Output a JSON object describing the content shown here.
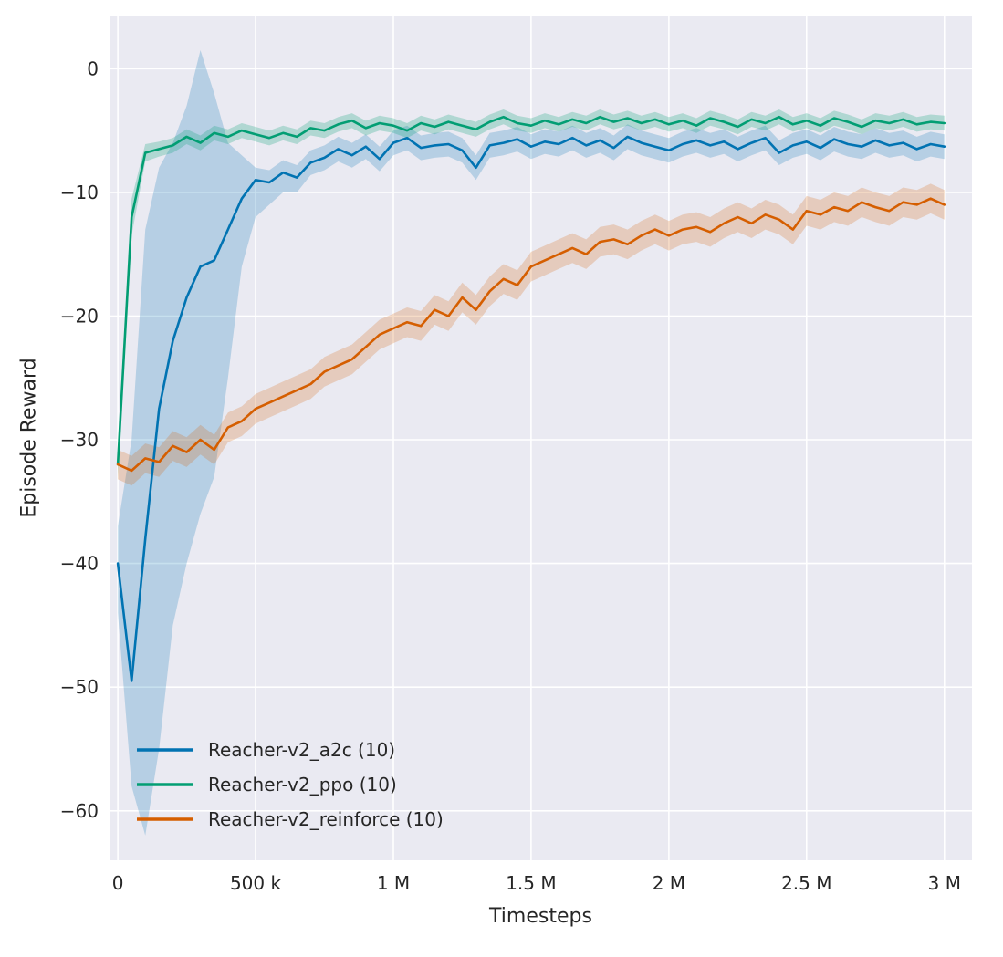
{
  "figure": {
    "background": "#ffffff",
    "plot_background": "#eaeaf2",
    "grid_color": "#ffffff",
    "text_color": "#262626"
  },
  "chart_data": {
    "type": "line",
    "title": "",
    "xlabel": "Timesteps",
    "ylabel": "Episode Reward",
    "x_unit": "timesteps, x values stored in thousands",
    "xlim": [
      -30,
      3100
    ],
    "ylim": [
      -64,
      4.3
    ],
    "grid": true,
    "legend_position": "lower left",
    "x_ticks": [
      {
        "value": 0,
        "label": "0"
      },
      {
        "value": 500,
        "label": "500 k"
      },
      {
        "value": 1000,
        "label": "1 M"
      },
      {
        "value": 1500,
        "label": "1.5 M"
      },
      {
        "value": 2000,
        "label": "2 M"
      },
      {
        "value": 2500,
        "label": "2.5 M"
      },
      {
        "value": 3000,
        "label": "3 M"
      }
    ],
    "y_ticks": [
      {
        "value": 0,
        "label": "0"
      },
      {
        "value": -10,
        "label": "−10"
      },
      {
        "value": -20,
        "label": "−20"
      },
      {
        "value": -30,
        "label": "−30"
      },
      {
        "value": -40,
        "label": "−40"
      },
      {
        "value": -50,
        "label": "−50"
      },
      {
        "value": -60,
        "label": "−60"
      }
    ],
    "x": [
      0,
      50,
      100,
      150,
      200,
      250,
      300,
      350,
      400,
      450,
      500,
      550,
      600,
      650,
      700,
      750,
      800,
      850,
      900,
      950,
      1000,
      1050,
      1100,
      1150,
      1200,
      1250,
      1300,
      1350,
      1400,
      1450,
      1500,
      1550,
      1600,
      1650,
      1700,
      1750,
      1800,
      1850,
      1900,
      1950,
      2000,
      2050,
      2100,
      2150,
      2200,
      2250,
      2300,
      2350,
      2400,
      2450,
      2500,
      2550,
      2600,
      2650,
      2700,
      2750,
      2800,
      2850,
      2900,
      2950,
      3000
    ],
    "series": [
      {
        "id": "a2c",
        "name": "Reacher-v2_a2c (10)",
        "color": "#0173b2",
        "band_opacity": 0.22,
        "y": [
          -40,
          -49.5,
          -38,
          -27.5,
          -22,
          -18.5,
          -16,
          -15.5,
          -13,
          -10.5,
          -9,
          -9.2,
          -8.4,
          -8.8,
          -7.6,
          -7.2,
          -6.5,
          -7.0,
          -6.3,
          -7.3,
          -6.0,
          -5.6,
          -6.4,
          -6.2,
          -6.1,
          -6.6,
          -8.0,
          -6.2,
          -6.0,
          -5.7,
          -6.3,
          -5.9,
          -6.1,
          -5.6,
          -6.2,
          -5.8,
          -6.4,
          -5.5,
          -6.0,
          -6.3,
          -6.6,
          -6.1,
          -5.8,
          -6.2,
          -5.9,
          -6.5,
          -6.0,
          -5.6,
          -6.8,
          -6.2,
          -5.9,
          -6.4,
          -5.7,
          -6.1,
          -6.3,
          -5.8,
          -6.2,
          -6.0,
          -6.5,
          -6.1,
          -6.3
        ],
        "lo": [
          -44,
          -58,
          -62,
          -55,
          -45,
          -40,
          -36,
          -33,
          -25,
          -16,
          -12,
          -11,
          -10,
          -10,
          -8.6,
          -8.2,
          -7.5,
          -8.0,
          -7.3,
          -8.3,
          -7.0,
          -6.6,
          -7.4,
          -7.2,
          -7.1,
          -7.6,
          -9.0,
          -7.2,
          -7.0,
          -6.7,
          -7.3,
          -6.9,
          -7.1,
          -6.6,
          -7.2,
          -6.8,
          -7.4,
          -6.5,
          -7.0,
          -7.3,
          -7.6,
          -7.1,
          -6.8,
          -7.2,
          -6.9,
          -7.5,
          -7.0,
          -6.6,
          -7.8,
          -7.2,
          -6.9,
          -7.4,
          -6.7,
          -7.1,
          -7.3,
          -6.8,
          -7.2,
          -7.0,
          -7.5,
          -7.1,
          -7.3
        ],
        "hi": [
          -37,
          -30,
          -13,
          -8,
          -6,
          -3,
          1.5,
          -2,
          -6,
          -7,
          -8,
          -8.2,
          -7.4,
          -7.8,
          -6.6,
          -6.2,
          -5.5,
          -6.0,
          -5.3,
          -6.3,
          -5.0,
          -4.6,
          -5.4,
          -5.2,
          -5.1,
          -5.6,
          -7.0,
          -5.2,
          -5.0,
          -4.7,
          -5.3,
          -4.9,
          -5.1,
          -4.6,
          -5.2,
          -4.8,
          -5.4,
          -4.5,
          -5.0,
          -5.3,
          -5.6,
          -5.1,
          -4.8,
          -5.2,
          -4.9,
          -5.5,
          -5.0,
          -4.6,
          -5.8,
          -5.2,
          -4.9,
          -5.4,
          -4.7,
          -5.1,
          -5.3,
          -4.8,
          -5.2,
          -5.0,
          -5.5,
          -5.1,
          -5.3
        ]
      },
      {
        "id": "ppo",
        "name": "Reacher-v2_ppo (10)",
        "color": "#029e73",
        "band_opacity": 0.25,
        "y": [
          -32,
          -12,
          -6.8,
          -6.5,
          -6.2,
          -5.5,
          -6.0,
          -5.2,
          -5.5,
          -5.0,
          -5.3,
          -5.6,
          -5.2,
          -5.5,
          -4.8,
          -5.0,
          -4.5,
          -4.2,
          -4.8,
          -4.4,
          -4.6,
          -5.0,
          -4.4,
          -4.7,
          -4.3,
          -4.6,
          -4.9,
          -4.3,
          -3.9,
          -4.4,
          -4.6,
          -4.2,
          -4.5,
          -4.1,
          -4.4,
          -3.9,
          -4.3,
          -4.0,
          -4.4,
          -4.1,
          -4.5,
          -4.2,
          -4.6,
          -4.0,
          -4.3,
          -4.7,
          -4.1,
          -4.4,
          -3.9,
          -4.5,
          -4.2,
          -4.6,
          -4.0,
          -4.3,
          -4.7,
          -4.2,
          -4.4,
          -4.1,
          -4.5,
          -4.3,
          -4.4
        ],
        "lo": [
          -33,
          -13.5,
          -7.5,
          -7.1,
          -6.8,
          -6.1,
          -6.6,
          -5.8,
          -6.1,
          -5.6,
          -5.9,
          -6.2,
          -5.8,
          -6.1,
          -5.4,
          -5.6,
          -5.1,
          -4.8,
          -5.4,
          -5.0,
          -5.2,
          -5.6,
          -5.0,
          -5.3,
          -4.9,
          -5.2,
          -5.5,
          -4.9,
          -4.5,
          -5.0,
          -5.2,
          -4.8,
          -5.1,
          -4.7,
          -5.0,
          -4.5,
          -4.9,
          -4.6,
          -5.0,
          -4.7,
          -5.1,
          -4.8,
          -5.2,
          -4.6,
          -4.9,
          -5.3,
          -4.7,
          -5.0,
          -4.5,
          -5.1,
          -4.8,
          -5.2,
          -4.6,
          -4.9,
          -5.3,
          -4.8,
          -5.0,
          -4.7,
          -5.1,
          -4.9,
          -5.0
        ],
        "hi": [
          -31,
          -10.5,
          -6.1,
          -5.9,
          -5.6,
          -4.9,
          -5.4,
          -4.6,
          -4.9,
          -4.4,
          -4.7,
          -5.0,
          -4.6,
          -4.9,
          -4.2,
          -4.4,
          -3.9,
          -3.6,
          -4.2,
          -3.8,
          -4.0,
          -4.4,
          -3.8,
          -4.1,
          -3.7,
          -4.0,
          -4.3,
          -3.7,
          -3.3,
          -3.8,
          -4.0,
          -3.6,
          -3.9,
          -3.5,
          -3.8,
          -3.3,
          -3.7,
          -3.4,
          -3.8,
          -3.5,
          -3.9,
          -3.6,
          -4.0,
          -3.4,
          -3.7,
          -4.1,
          -3.5,
          -3.8,
          -3.3,
          -3.9,
          -3.6,
          -4.0,
          -3.4,
          -3.7,
          -4.1,
          -3.6,
          -3.8,
          -3.5,
          -3.9,
          -3.7,
          -3.8
        ]
      },
      {
        "id": "reinforce",
        "name": "Reacher-v2_reinforce (10)",
        "color": "#d55e00",
        "band_opacity": 0.22,
        "y": [
          -32,
          -32.5,
          -31.5,
          -31.8,
          -30.5,
          -31.0,
          -30.0,
          -30.8,
          -29.0,
          -28.5,
          -27.5,
          -27.0,
          -26.5,
          -26.0,
          -25.5,
          -24.5,
          -24.0,
          -23.5,
          -22.5,
          -21.5,
          -21.0,
          -20.5,
          -20.8,
          -19.5,
          -20.0,
          -18.5,
          -19.5,
          -18.0,
          -17.0,
          -17.5,
          -16.0,
          -15.5,
          -15.0,
          -14.5,
          -15.0,
          -14.0,
          -13.8,
          -14.2,
          -13.5,
          -13.0,
          -13.5,
          -13.0,
          -12.8,
          -13.2,
          -12.5,
          -12.0,
          -12.5,
          -11.8,
          -12.2,
          -13.0,
          -11.5,
          -11.8,
          -11.2,
          -11.5,
          -10.8,
          -11.2,
          -11.5,
          -10.8,
          -11.0,
          -10.5,
          -11.0
        ],
        "lo": [
          -33.2,
          -33.7,
          -32.7,
          -33.0,
          -31.7,
          -32.2,
          -31.2,
          -32.0,
          -30.2,
          -29.7,
          -28.7,
          -28.2,
          -27.7,
          -27.2,
          -26.7,
          -25.7,
          -25.2,
          -24.7,
          -23.7,
          -22.7,
          -22.2,
          -21.7,
          -22.0,
          -20.7,
          -21.2,
          -19.7,
          -20.7,
          -19.2,
          -18.2,
          -18.7,
          -17.2,
          -16.7,
          -16.2,
          -15.7,
          -16.2,
          -15.2,
          -15.0,
          -15.4,
          -14.7,
          -14.2,
          -14.7,
          -14.2,
          -14.0,
          -14.4,
          -13.7,
          -13.2,
          -13.7,
          -13.0,
          -13.4,
          -14.2,
          -12.7,
          -13.0,
          -12.4,
          -12.7,
          -12.0,
          -12.4,
          -12.7,
          -12.0,
          -12.2,
          -11.7,
          -12.2
        ],
        "hi": [
          -30.8,
          -31.3,
          -30.3,
          -30.6,
          -29.3,
          -29.8,
          -28.8,
          -29.6,
          -27.8,
          -27.3,
          -26.3,
          -25.8,
          -25.3,
          -24.8,
          -24.3,
          -23.3,
          -22.8,
          -22.3,
          -21.3,
          -20.3,
          -19.8,
          -19.3,
          -19.6,
          -18.3,
          -18.8,
          -17.3,
          -18.3,
          -16.8,
          -15.8,
          -16.3,
          -14.8,
          -14.3,
          -13.8,
          -13.3,
          -13.8,
          -12.8,
          -12.6,
          -13.0,
          -12.3,
          -11.8,
          -12.3,
          -11.8,
          -11.6,
          -12.0,
          -11.3,
          -10.8,
          -11.3,
          -10.6,
          -11.0,
          -11.8,
          -10.3,
          -10.6,
          -10.0,
          -10.3,
          -9.6,
          -10.0,
          -10.3,
          -9.6,
          -9.8,
          -9.3,
          -9.8
        ]
      }
    ]
  }
}
